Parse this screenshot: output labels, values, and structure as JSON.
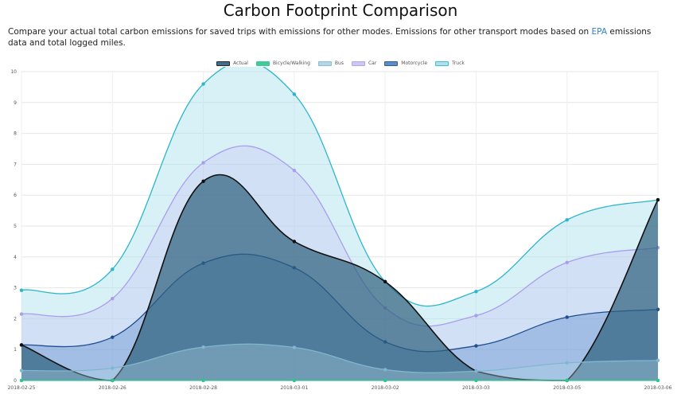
{
  "page": {
    "title": "Carbon Footprint Comparison",
    "desc_before": "Compare your actual total carbon emissions for saved trips with emissions for other modes. Emissions for other transport modes based on ",
    "desc_link": "EPA",
    "desc_after": " emissions data and total logged miles."
  },
  "chart_data": {
    "type": "area",
    "categories": [
      "2018-02-25",
      "2018-02-26",
      "2018-02-28",
      "2018-03-01",
      "2018-03-02",
      "2018-03-03",
      "2018-03-05",
      "2018-03-06"
    ],
    "ylim": [
      0,
      10
    ],
    "yticks": [
      0,
      1,
      2,
      3,
      4,
      5,
      6,
      7,
      8,
      9,
      10
    ],
    "grid": true,
    "legend_position": "top-center",
    "series": [
      {
        "name": "Actual",
        "values": [
          1.15,
          0.0,
          6.45,
          4.5,
          3.2,
          0.3,
          0.0,
          5.85
        ],
        "line": "#111111",
        "fill": "#2e5f7e",
        "fill_opacity": 0.7
      },
      {
        "name": "Bicycle/Walking",
        "values": [
          0,
          0,
          0,
          0,
          0,
          0,
          0,
          0
        ],
        "line": "#2bc68e",
        "fill": "#2bc68e",
        "fill_opacity": 0.2
      },
      {
        "name": "Bus",
        "values": [
          0.32,
          0.4,
          1.08,
          1.07,
          0.35,
          0.3,
          0.57,
          0.65
        ],
        "line": "#7fb7cf",
        "fill": "#aed3e3",
        "fill_opacity": 0.35
      },
      {
        "name": "Car",
        "values": [
          2.15,
          2.65,
          7.05,
          6.8,
          2.35,
          2.1,
          3.82,
          4.3
        ],
        "line": "#aa9ded",
        "fill": "#c9c0f5",
        "fill_opacity": 0.35
      },
      {
        "name": "Motorcycle",
        "values": [
          1.15,
          1.4,
          3.8,
          3.65,
          1.25,
          1.12,
          2.05,
          2.3
        ],
        "line": "#1f4e91",
        "fill": "#4b7fc6",
        "fill_opacity": 0.35
      },
      {
        "name": "Truck",
        "values": [
          2.92,
          3.6,
          9.6,
          9.27,
          3.2,
          2.88,
          5.2,
          5.85
        ],
        "line": "#2cb5cc",
        "fill": "#a6e1ec",
        "fill_opacity": 0.45
      }
    ]
  }
}
